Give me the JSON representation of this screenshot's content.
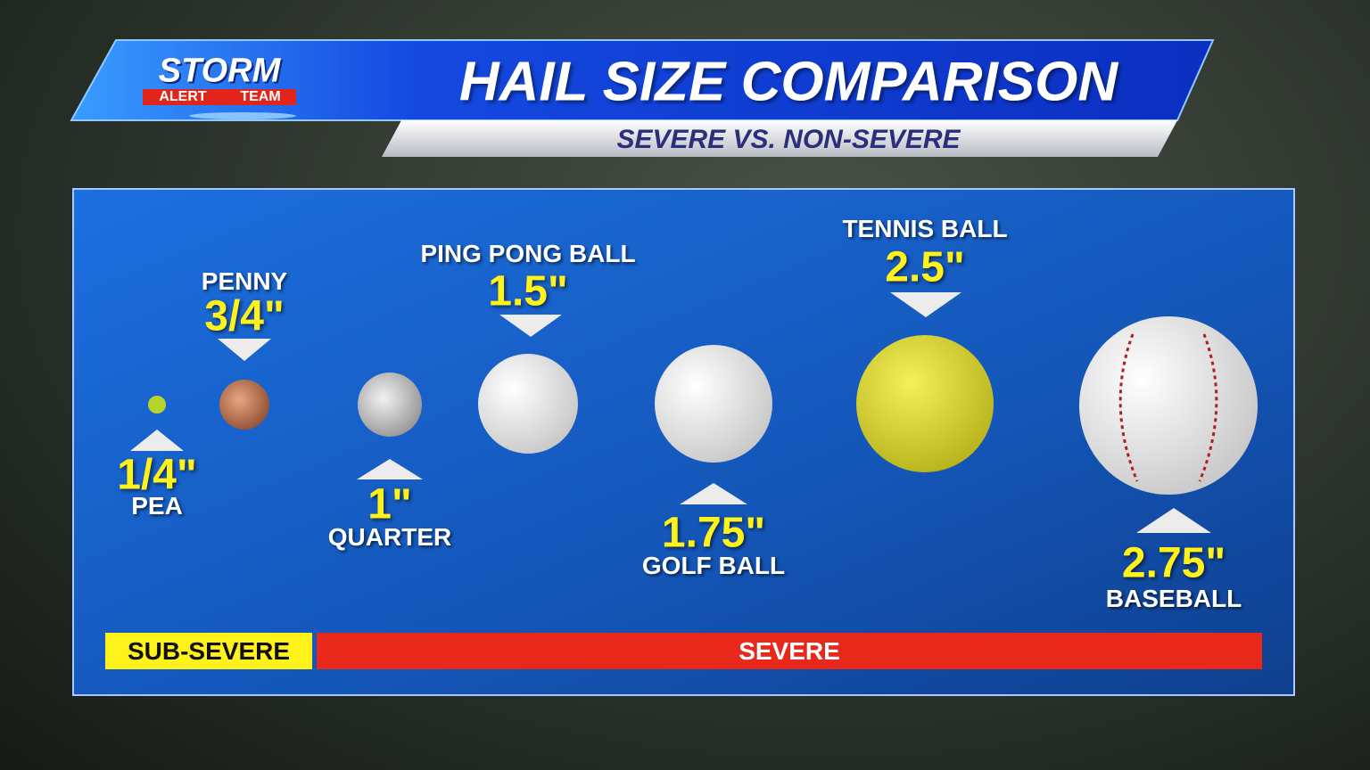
{
  "header": {
    "logo": {
      "line1": "STORM",
      "line2": "ALERT",
      "line3": "TEAM"
    },
    "title": "HAIL SIZE COMPARISON",
    "subtitle": "SEVERE VS. NON-SEVERE"
  },
  "items": [
    {
      "name": "PEA",
      "size": "1/4\""
    },
    {
      "name": "PENNY",
      "size": "3/4\""
    },
    {
      "name": "QUARTER",
      "size": "1\""
    },
    {
      "name": "PING PONG BALL",
      "size": "1.5\""
    },
    {
      "name": "GOLF BALL",
      "size": "1.75\""
    },
    {
      "name": "TENNIS BALL",
      "size": "2.5\""
    },
    {
      "name": "BASEBALL",
      "size": "2.75\""
    }
  ],
  "bands": {
    "sub_severe": "SUB-SEVERE",
    "severe": "SEVERE"
  }
}
